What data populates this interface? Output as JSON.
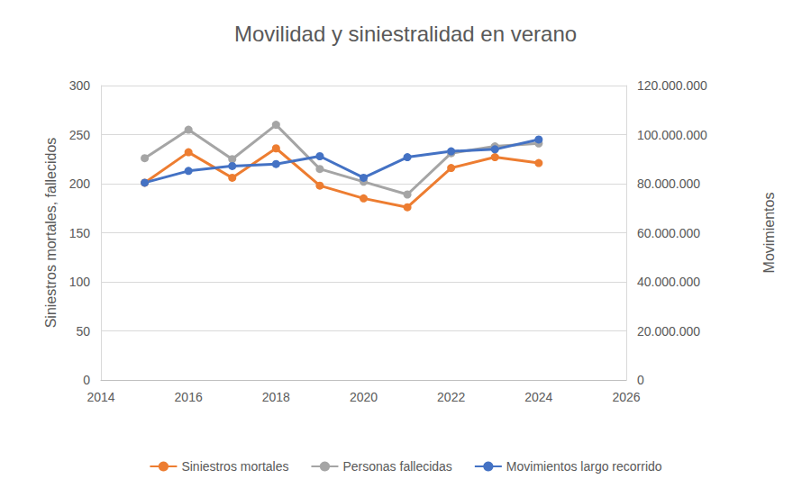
{
  "chart_data": {
    "type": "line",
    "title": "Movilidad y siniestralidad en verano",
    "y_label": "Siniestros mortales, fallecidos",
    "y2_label": "Movimientos",
    "x": [
      2015,
      2016,
      2017,
      2018,
      2019,
      2020,
      2021,
      2022,
      2023,
      2024
    ],
    "xlim": [
      2014,
      2026
    ],
    "xticks": [
      2014,
      2016,
      2018,
      2020,
      2022,
      2024,
      2026
    ],
    "ylim": [
      0,
      300
    ],
    "yticks": [
      0,
      50,
      100,
      150,
      200,
      250,
      300
    ],
    "y2lim": [
      0,
      120000000
    ],
    "y2ticks": [
      0,
      {
        "value": 20000000,
        "label": "20.000.000"
      },
      {
        "value": 40000000,
        "label": "40.000.000"
      },
      {
        "value": 60000000,
        "label": "60.000.000"
      },
      {
        "value": 80000000,
        "label": "80.000.000"
      },
      {
        "value": 100000000,
        "label": "100.000.000"
      },
      {
        "value": 120000000,
        "label": "120.000.000"
      }
    ],
    "grid": true,
    "legend": "bottom",
    "marker": "circle",
    "series": [
      {
        "name": "Siniestros mortales",
        "color": "#ed7d31",
        "values": [
          201,
          232,
          206,
          236,
          198,
          185,
          176,
          216,
          227,
          221
        ]
      },
      {
        "name": "Personas fallecidas",
        "color": "#a5a5a5",
        "values": [
          226,
          255,
          225,
          260,
          215,
          202,
          189,
          231,
          238,
          241
        ]
      },
      {
        "name": "Movimientos largo recorrido",
        "color": "#4472c4",
        "axis": "y2",
        "values": [
          80400000,
          85200000,
          87200000,
          88000000,
          91200000,
          82400000,
          90800000,
          93200000,
          94000000,
          98000000
        ]
      }
    ]
  }
}
